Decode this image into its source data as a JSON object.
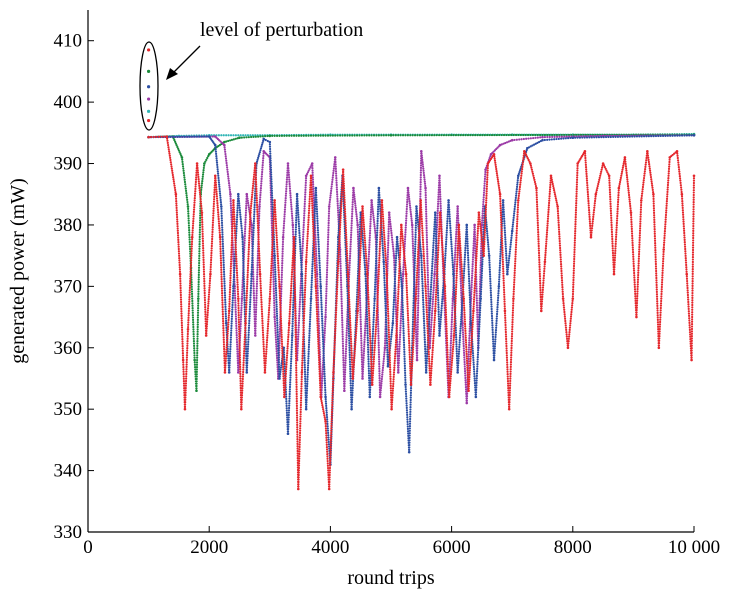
{
  "chart_data": {
    "type": "scatter",
    "title": "",
    "xlabel": "round trips",
    "ylabel": "generated power (mW)",
    "xlim": [
      0,
      10000
    ],
    "ylim": [
      330,
      415
    ],
    "xticks": [
      0,
      2000,
      4000,
      6000,
      8000,
      10000
    ],
    "xtick_labels": [
      "0",
      "2000",
      "4000",
      "6000",
      "8000",
      "10 000"
    ],
    "yticks": [
      330,
      340,
      350,
      360,
      370,
      380,
      390,
      400,
      410
    ],
    "ytick_labels": [
      "330",
      "340",
      "350",
      "360",
      "370",
      "380",
      "390",
      "400",
      "410"
    ],
    "grid": false,
    "legend": "none",
    "annotation": {
      "text": "level of perturbation",
      "target_x": 1000,
      "target_range": [
        394,
        410
      ]
    },
    "perturbation_points": [
      {
        "x": 1000,
        "y": 408.5,
        "color": "#e4262b"
      },
      {
        "x": 1000,
        "y": 405.0,
        "color": "#1a8a3a"
      },
      {
        "x": 1000,
        "y": 402.5,
        "color": "#2b4ea2"
      },
      {
        "x": 1000,
        "y": 400.5,
        "color": "#9b3aa6"
      },
      {
        "x": 1000,
        "y": 398.5,
        "color": "#2fb5b5"
      },
      {
        "x": 1000,
        "y": 397.0,
        "color": "#e4262b"
      }
    ],
    "series": [
      {
        "color": "#2fb5b5",
        "points": [
          [
            1000,
            394.3
          ],
          [
            1500,
            394.5
          ],
          [
            2000,
            394.6
          ],
          [
            3000,
            394.6
          ],
          [
            4000,
            394.7
          ],
          [
            5000,
            394.7
          ],
          [
            6000,
            394.7
          ],
          [
            7000,
            394.7
          ],
          [
            8000,
            394.7
          ],
          [
            9000,
            394.7
          ],
          [
            10000,
            394.8
          ]
        ]
      },
      {
        "color": "#1a8a3a",
        "points": [
          [
            1000,
            394.3
          ],
          [
            1400,
            394.4
          ],
          [
            1550,
            391
          ],
          [
            1650,
            383
          ],
          [
            1700,
            373
          ],
          [
            1760,
            358
          ],
          [
            1790,
            353
          ],
          [
            1820,
            368
          ],
          [
            1860,
            385
          ],
          [
            1920,
            390
          ],
          [
            2000,
            391.5
          ],
          [
            2100,
            392.5
          ],
          [
            2250,
            393.5
          ],
          [
            2500,
            394.2
          ],
          [
            3000,
            394.5
          ],
          [
            5000,
            394.6
          ],
          [
            10000,
            394.7
          ]
        ]
      },
      {
        "color": "#9b3aa6",
        "points": [
          [
            1000,
            394.3
          ],
          [
            2100,
            394.4
          ],
          [
            2250,
            393
          ],
          [
            2350,
            385
          ],
          [
            2420,
            370
          ],
          [
            2480,
            356
          ],
          [
            2540,
            368
          ],
          [
            2620,
            385
          ],
          [
            2700,
            380
          ],
          [
            2760,
            362
          ],
          [
            2830,
            383
          ],
          [
            2900,
            392
          ],
          [
            3000,
            391
          ],
          [
            3080,
            365
          ],
          [
            3140,
            355
          ],
          [
            3220,
            378
          ],
          [
            3300,
            390
          ],
          [
            3380,
            380
          ],
          [
            3450,
            358
          ],
          [
            3520,
            372
          ],
          [
            3600,
            388
          ],
          [
            3700,
            390
          ],
          [
            3780,
            372
          ],
          [
            3850,
            352
          ],
          [
            3920,
            365
          ],
          [
            3980,
            383
          ],
          [
            4080,
            391
          ],
          [
            4160,
            376
          ],
          [
            4230,
            353
          ],
          [
            4300,
            370
          ],
          [
            4380,
            386
          ],
          [
            4450,
            380
          ],
          [
            4530,
            355
          ],
          [
            4600,
            368
          ],
          [
            4680,
            384
          ],
          [
            4750,
            378
          ],
          [
            4820,
            352
          ],
          [
            4900,
            360
          ],
          [
            4970,
            382
          ],
          [
            5050,
            375
          ],
          [
            5120,
            356
          ],
          [
            5200,
            372
          ],
          [
            5280,
            386
          ],
          [
            5350,
            380
          ],
          [
            5430,
            358
          ],
          [
            5500,
            392
          ],
          [
            5570,
            386
          ],
          [
            5640,
            360
          ],
          [
            5720,
            372
          ],
          [
            5800,
            388
          ],
          [
            5880,
            368
          ],
          [
            5950,
            352
          ],
          [
            6020,
            368
          ],
          [
            6100,
            383
          ],
          [
            6180,
            364
          ],
          [
            6250,
            351
          ],
          [
            6320,
            368
          ],
          [
            6380,
            380
          ],
          [
            6440,
            360
          ],
          [
            6500,
            380
          ],
          [
            6560,
            389
          ],
          [
            6650,
            391.5
          ],
          [
            6800,
            393
          ],
          [
            7000,
            393.8
          ],
          [
            7500,
            394.3
          ],
          [
            8500,
            394.5
          ],
          [
            10000,
            394.6
          ]
        ]
      },
      {
        "color": "#2b4ea2",
        "points": [
          [
            1000,
            394.3
          ],
          [
            2000,
            394.4
          ],
          [
            2100,
            393
          ],
          [
            2200,
            383
          ],
          [
            2280,
            364
          ],
          [
            2330,
            356
          ],
          [
            2400,
            370
          ],
          [
            2480,
            385
          ],
          [
            2550,
            378
          ],
          [
            2620,
            356
          ],
          [
            2700,
            372
          ],
          [
            2780,
            390
          ],
          [
            2900,
            394
          ],
          [
            3000,
            393.5
          ],
          [
            3080,
            375
          ],
          [
            3160,
            355
          ],
          [
            3230,
            360
          ],
          [
            3300,
            346
          ],
          [
            3370,
            362
          ],
          [
            3450,
            385
          ],
          [
            3530,
            372
          ],
          [
            3600,
            350
          ],
          [
            3680,
            368
          ],
          [
            3760,
            386
          ],
          [
            3840,
            370
          ],
          [
            3920,
            352
          ],
          [
            4000,
            341
          ],
          [
            4050,
            355
          ],
          [
            4130,
            378
          ],
          [
            4200,
            388
          ],
          [
            4280,
            370
          ],
          [
            4350,
            350
          ],
          [
            4430,
            366
          ],
          [
            4500,
            382
          ],
          [
            4580,
            372
          ],
          [
            4650,
            352
          ],
          [
            4730,
            368
          ],
          [
            4800,
            386
          ],
          [
            4880,
            374
          ],
          [
            4950,
            357
          ],
          [
            5030,
            364
          ],
          [
            5100,
            378
          ],
          [
            5180,
            370
          ],
          [
            5240,
            354
          ],
          [
            5300,
            343
          ],
          [
            5350,
            360
          ],
          [
            5420,
            383
          ],
          [
            5500,
            375
          ],
          [
            5580,
            356
          ],
          [
            5650,
            368
          ],
          [
            5730,
            382
          ],
          [
            5800,
            362
          ],
          [
            5880,
            372
          ],
          [
            5950,
            384
          ],
          [
            6030,
            372
          ],
          [
            6100,
            356
          ],
          [
            6180,
            368
          ],
          [
            6250,
            380
          ],
          [
            6320,
            364
          ],
          [
            6400,
            352
          ],
          [
            6480,
            368
          ],
          [
            6550,
            383
          ],
          [
            6620,
            375
          ],
          [
            6700,
            358
          ],
          [
            6780,
            370
          ],
          [
            6850,
            384
          ],
          [
            6920,
            372
          ],
          [
            7000,
            379
          ],
          [
            7100,
            388
          ],
          [
            7250,
            392.5
          ],
          [
            7500,
            393.8
          ],
          [
            8000,
            394.2
          ],
          [
            10000,
            394.6
          ]
        ]
      },
      {
        "color": "#e4262b",
        "points": [
          [
            1000,
            394.3
          ],
          [
            1300,
            394.4
          ],
          [
            1450,
            385
          ],
          [
            1520,
            372
          ],
          [
            1570,
            358
          ],
          [
            1600,
            350
          ],
          [
            1650,
            363
          ],
          [
            1720,
            378
          ],
          [
            1800,
            390
          ],
          [
            1880,
            382
          ],
          [
            1950,
            362
          ],
          [
            2020,
            372
          ],
          [
            2100,
            388
          ],
          [
            2180,
            378
          ],
          [
            2260,
            356
          ],
          [
            2330,
            366
          ],
          [
            2400,
            384
          ],
          [
            2480,
            368
          ],
          [
            2530,
            350
          ],
          [
            2600,
            364
          ],
          [
            2680,
            382
          ],
          [
            2760,
            390
          ],
          [
            2840,
            372
          ],
          [
            2920,
            356
          ],
          [
            3000,
            368
          ],
          [
            3080,
            384
          ],
          [
            3160,
            370
          ],
          [
            3240,
            352
          ],
          [
            3320,
            364
          ],
          [
            3400,
            378
          ],
          [
            3470,
            337
          ],
          [
            3530,
            356
          ],
          [
            3600,
            374
          ],
          [
            3680,
            388
          ],
          [
            3760,
            370
          ],
          [
            3840,
            352
          ],
          [
            3920,
            348
          ],
          [
            3980,
            337
          ],
          [
            4050,
            356
          ],
          [
            4130,
            374
          ],
          [
            4210,
            389
          ],
          [
            4290,
            372
          ],
          [
            4370,
            355
          ],
          [
            4450,
            366
          ],
          [
            4530,
            383
          ],
          [
            4610,
            372
          ],
          [
            4690,
            354
          ],
          [
            4770,
            366
          ],
          [
            4850,
            384
          ],
          [
            4930,
            372
          ],
          [
            5010,
            350
          ],
          [
            5090,
            362
          ],
          [
            5170,
            380
          ],
          [
            5250,
            372
          ],
          [
            5330,
            354
          ],
          [
            5410,
            368
          ],
          [
            5490,
            384
          ],
          [
            5570,
            370
          ],
          [
            5650,
            354
          ],
          [
            5730,
            366
          ],
          [
            5810,
            382
          ],
          [
            5890,
            370
          ],
          [
            5960,
            352
          ],
          [
            6040,
            362
          ],
          [
            6120,
            380
          ],
          [
            6200,
            368
          ],
          [
            6280,
            353
          ],
          [
            6360,
            366
          ],
          [
            6450,
            382
          ],
          [
            6530,
            375
          ],
          [
            6600,
            390
          ],
          [
            6700,
            391.5
          ],
          [
            6800,
            385
          ],
          [
            6880,
            366
          ],
          [
            6950,
            350
          ],
          [
            7020,
            368
          ],
          [
            7100,
            384
          ],
          [
            7200,
            392
          ],
          [
            7300,
            390
          ],
          [
            7400,
            386
          ],
          [
            7480,
            366
          ],
          [
            7540,
            374
          ],
          [
            7640,
            388
          ],
          [
            7750,
            383
          ],
          [
            7840,
            368
          ],
          [
            7920,
            360
          ],
          [
            8000,
            368
          ],
          [
            8080,
            390
          ],
          [
            8200,
            392
          ],
          [
            8300,
            378
          ],
          [
            8380,
            385
          ],
          [
            8500,
            390
          ],
          [
            8600,
            388
          ],
          [
            8680,
            372
          ],
          [
            8760,
            386
          ],
          [
            8860,
            391
          ],
          [
            8960,
            382
          ],
          [
            9050,
            365
          ],
          [
            9130,
            384
          ],
          [
            9230,
            392
          ],
          [
            9330,
            385
          ],
          [
            9420,
            360
          ],
          [
            9500,
            376
          ],
          [
            9600,
            391
          ],
          [
            9720,
            392
          ],
          [
            9800,
            385
          ],
          [
            9880,
            372
          ],
          [
            9960,
            358
          ],
          [
            10000,
            388
          ]
        ]
      }
    ]
  }
}
